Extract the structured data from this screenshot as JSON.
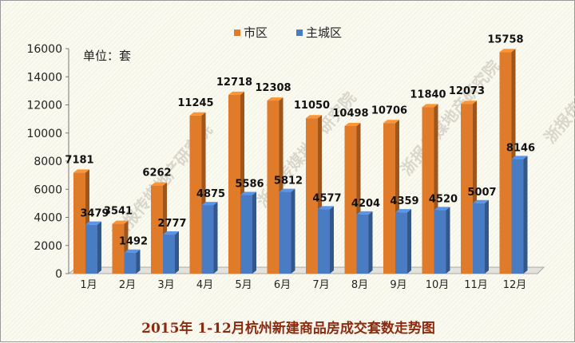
{
  "chart_data": {
    "type": "bar",
    "title": "2015年 1-12月杭州新建商品房成交套数走势图",
    "unit_label": "单位：套",
    "categories": [
      "1月",
      "2月",
      "3月",
      "4月",
      "5月",
      "6月",
      "7月",
      "8月",
      "9月",
      "10月",
      "11月",
      "12月"
    ],
    "series": [
      {
        "name": "市区",
        "color": "#e07b2a",
        "values": [
          7181,
          3541,
          6262,
          11245,
          12718,
          12308,
          11050,
          10498,
          10706,
          11840,
          12073,
          15758
        ]
      },
      {
        "name": "主城区",
        "color": "#4a7cc4",
        "values": [
          3479,
          1492,
          2777,
          4875,
          5586,
          5812,
          4577,
          4204,
          4359,
          4520,
          5007,
          8146
        ]
      }
    ],
    "yticks": [
      0,
      2000,
      4000,
      6000,
      8000,
      10000,
      12000,
      14000,
      16000
    ],
    "ylim": [
      0,
      16000
    ],
    "legend_position": "top-right",
    "grid": false
  },
  "watermark": "浙报传媒地产研究院"
}
